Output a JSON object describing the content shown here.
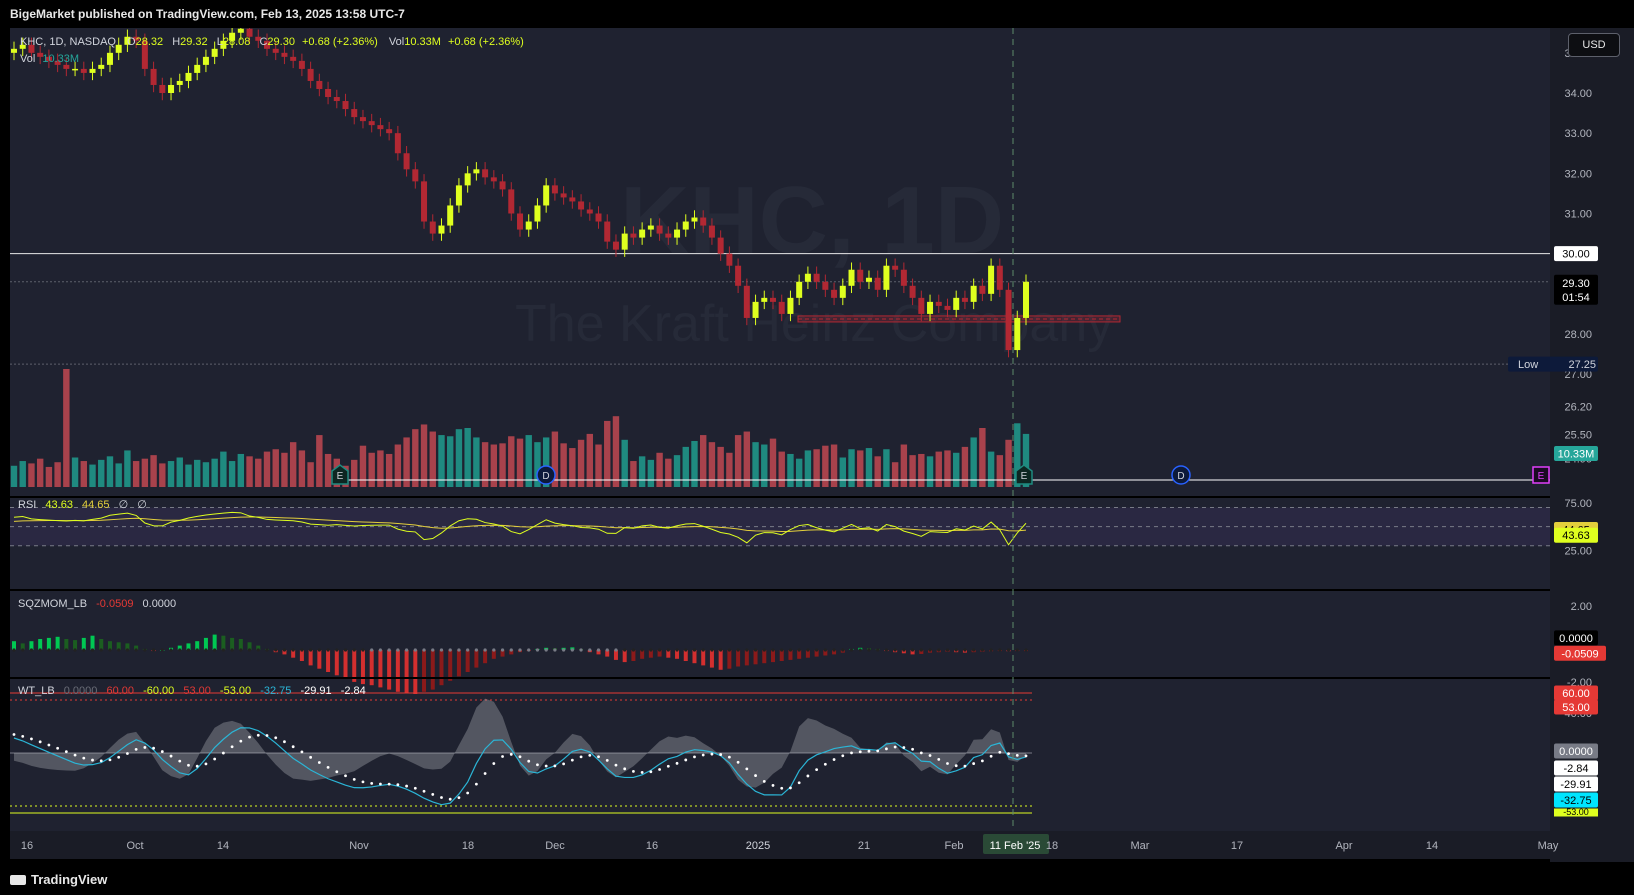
{
  "header": {
    "publisher_line": "BigeMarket published on TradingView.com, Feb 13, 2025 13:58 UTC-7"
  },
  "footer": {
    "brand": "TradingView"
  },
  "currency_button": "USD",
  "legend": {
    "symbol": "KHC, 1D, NASDAQ",
    "o_label": "O",
    "o": "28.32",
    "h_label": "H",
    "h": "29.32",
    "l_label": "L",
    "l": "28.08",
    "c_label": "C",
    "c": "29.30",
    "change": "+0.68 (+2.36%)",
    "vol_label": "Vol",
    "vol": "10.33M",
    "vol_change": "+0.68 (+2.36%)",
    "vol_row_label": "Vol",
    "vol_row_value": "10.33M"
  },
  "watermark": {
    "ticker": "KHC, 1D",
    "name": "The Kraft Heinz Company"
  },
  "colors": {
    "up": "#dfff1f",
    "down": "#b22833",
    "vol_up": "#1f8a80",
    "vol_down": "#a8424c",
    "rsi": "#e3cf3c",
    "wt1": "#2bb5d6",
    "bg": "#1f2230"
  },
  "chart_data": [
    {
      "type": "candlestick",
      "title": "KHC, 1D, NASDAQ",
      "x_axis_ticks": [
        "16",
        "Oct",
        "14",
        "Nov",
        "18",
        "Dec",
        "16",
        "2025",
        "21",
        "Feb",
        "11 Feb '25",
        "18",
        "Mar",
        "17",
        "Apr",
        "14",
        "May"
      ],
      "price_ticks": [
        "35.00",
        "34.00",
        "33.00",
        "32.00",
        "31.00",
        "30.00",
        "28.00",
        "27.00",
        "26.20",
        "25.50",
        "24.90"
      ],
      "ylim": [
        24.9,
        35.0
      ],
      "horizontal_line": {
        "value": "30.00"
      },
      "last_price": "29.30",
      "countdown": "01:54",
      "low_label": "Low",
      "low_value": "27.25",
      "volume_label": "10.33M",
      "support_zone": [
        28.3,
        28.45
      ],
      "event_markers": [
        "E",
        "D",
        "E",
        "D",
        "E"
      ],
      "closes": [
        35.1,
        35.2,
        35.0,
        34.9,
        34.8,
        34.7,
        34.6,
        34.6,
        34.5,
        34.6,
        34.7,
        35.0,
        35.2,
        35.4,
        35.3,
        34.6,
        34.2,
        34.0,
        34.2,
        34.3,
        34.5,
        34.7,
        34.9,
        35.1,
        35.3,
        35.5,
        35.6,
        35.4,
        35.3,
        35.1,
        35.0,
        34.9,
        34.8,
        34.6,
        34.3,
        34.1,
        33.9,
        33.8,
        33.6,
        33.4,
        33.3,
        33.2,
        33.1,
        33.0,
        32.5,
        32.1,
        31.8,
        30.8,
        30.5,
        30.7,
        31.2,
        31.7,
        32.0,
        32.1,
        31.9,
        31.8,
        31.6,
        31.0,
        30.6,
        30.8,
        31.2,
        31.7,
        31.5,
        31.4,
        31.3,
        31.1,
        31.0,
        30.8,
        30.3,
        30.1,
        30.5,
        30.4,
        30.6,
        30.7,
        30.5,
        30.4,
        30.6,
        30.8,
        30.9,
        30.7,
        30.4,
        30.0,
        29.7,
        29.2,
        28.4,
        28.8,
        28.9,
        28.8,
        28.5,
        28.9,
        29.3,
        29.5,
        29.3,
        29.1,
        28.9,
        29.2,
        29.6,
        29.3,
        29.4,
        29.1,
        29.7,
        29.6,
        29.2,
        28.9,
        28.5,
        28.8,
        28.7,
        28.6,
        28.9,
        28.8,
        29.2,
        29.0,
        29.7,
        29.1,
        27.6,
        28.4,
        29.3
      ],
      "volume_rel": [
        0.18,
        0.22,
        0.2,
        0.24,
        0.17,
        0.21,
        1.0,
        0.25,
        0.22,
        0.19,
        0.23,
        0.26,
        0.2,
        0.31,
        0.22,
        0.24,
        0.27,
        0.2,
        0.22,
        0.25,
        0.19,
        0.23,
        0.21,
        0.24,
        0.3,
        0.22,
        0.28,
        0.26,
        0.24,
        0.3,
        0.32,
        0.29,
        0.38,
        0.31,
        0.21,
        0.44,
        0.28,
        0.24,
        0.18,
        0.23,
        0.35,
        0.29,
        0.31,
        0.28,
        0.36,
        0.42,
        0.49,
        0.53,
        0.47,
        0.44,
        0.43,
        0.49,
        0.5,
        0.42,
        0.38,
        0.36,
        0.37,
        0.43,
        0.41,
        0.44,
        0.38,
        0.42,
        0.47,
        0.37,
        0.33,
        0.4,
        0.45,
        0.36,
        0.56,
        0.6,
        0.4,
        0.22,
        0.26,
        0.23,
        0.29,
        0.24,
        0.27,
        0.34,
        0.39,
        0.44,
        0.38,
        0.34,
        0.29,
        0.44,
        0.47,
        0.38,
        0.36,
        0.41,
        0.3,
        0.28,
        0.24,
        0.31,
        0.32,
        0.35,
        0.36,
        0.25,
        0.32,
        0.31,
        0.33,
        0.26,
        0.32,
        0.21,
        0.36,
        0.27,
        0.28,
        0.26,
        0.3,
        0.31,
        0.29,
        0.34,
        0.42,
        0.5,
        0.3,
        0.27,
        0.4,
        0.54,
        0.45
      ]
    },
    {
      "type": "line",
      "title": "RSI",
      "legend_values": [
        "43.63",
        "44.65",
        "∅",
        "∅"
      ],
      "y_ticks": [
        "75.00",
        "25.00"
      ],
      "ylim": [
        15,
        80
      ],
      "levels": [
        70,
        50,
        30
      ],
      "labels": [
        "44.65",
        "43.63"
      ]
    },
    {
      "type": "bar",
      "title": "SQZMOM_LB",
      "legend_values": [
        "-0.0509",
        "0.0000"
      ],
      "y_ticks": [
        "2.00",
        "-2.00"
      ],
      "ylim": [
        -2.6,
        2.6
      ],
      "labels": [
        "0.0000",
        "-0.0509"
      ]
    },
    {
      "type": "line",
      "title": "WT_LB",
      "legend_values": [
        "0.0000",
        "60.00",
        "-60.00",
        "53.00",
        "-53.00",
        "-32.75",
        "-29.91",
        "-2.84"
      ],
      "y_ticks": [
        "60.00",
        "40.00"
      ],
      "ylim": [
        -70,
        70
      ],
      "labels": [
        "60.00",
        "53.00",
        "0.0000",
        "-2.84",
        "-29.91",
        "-32.75",
        "-53.00"
      ]
    }
  ]
}
